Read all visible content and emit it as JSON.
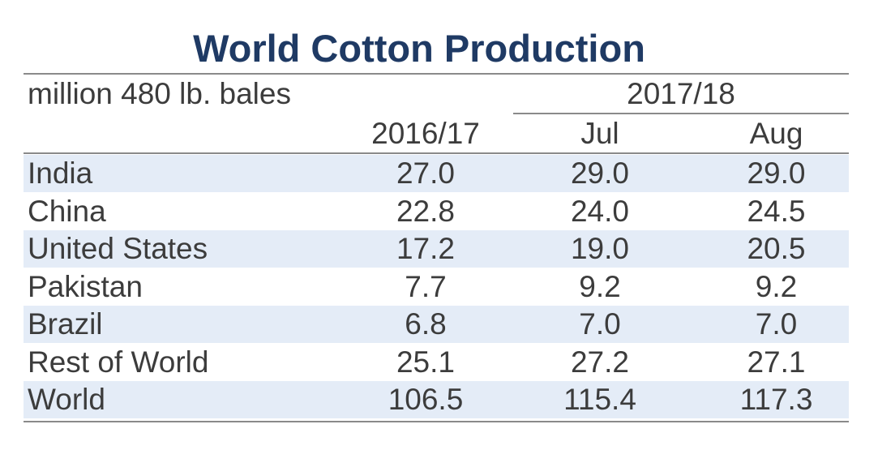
{
  "chart_data": {
    "type": "table",
    "title": "World Cotton Production",
    "unit_label": "million 480 lb. bales",
    "group_header": "2017/18",
    "columns": [
      "2016/17",
      "Jul",
      "Aug"
    ],
    "rows": [
      {
        "label": "India",
        "values": [
          "27.0",
          "29.0",
          "29.0"
        ]
      },
      {
        "label": "China",
        "values": [
          "22.8",
          "24.0",
          "24.5"
        ]
      },
      {
        "label": "United States",
        "values": [
          "17.2",
          "19.0",
          "20.5"
        ]
      },
      {
        "label": "Pakistan",
        "values": [
          "7.7",
          "9.2",
          "9.2"
        ]
      },
      {
        "label": "Brazil",
        "values": [
          "6.8",
          "7.0",
          "7.0"
        ]
      },
      {
        "label": "Rest of World",
        "values": [
          "25.1",
          "27.2",
          "27.1"
        ]
      },
      {
        "label": "World",
        "values": [
          "106.5",
          "115.4",
          "117.3"
        ]
      }
    ],
    "colors": {
      "title": "#1f3a64",
      "stripe": "#e4ecf7",
      "text": "#3c3c3c",
      "rule": "#8a8a8a"
    }
  }
}
